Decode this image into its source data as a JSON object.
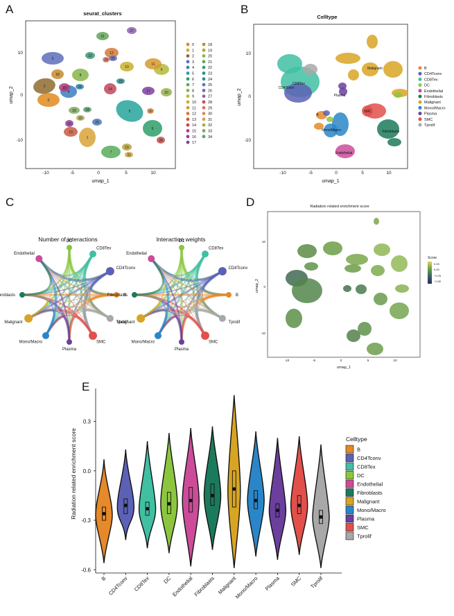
{
  "panels": {
    "A": "A",
    "B": "B",
    "C": "C",
    "D": "D",
    "E": "E"
  },
  "panel_a": {
    "title": "seurat_clusters",
    "xlabel": "umap_1",
    "ylabel": "umap_2",
    "x_ticks": [
      "-10",
      "-5",
      "0",
      "5",
      "10"
    ],
    "y_ticks": [
      "10",
      "0",
      "-10"
    ],
    "legend": [
      "0",
      "1",
      "2",
      "3",
      "4",
      "5",
      "6",
      "7",
      "8",
      "9",
      "10",
      "11",
      "12",
      "13",
      "14",
      "15",
      "16",
      "17",
      "18",
      "19",
      "20",
      "21",
      "22",
      "23",
      "24",
      "25",
      "26",
      "27",
      "28",
      "29",
      "30",
      "31",
      "32",
      "33",
      "34"
    ],
    "legend_colors": [
      "#e08a1e",
      "#d9a33a",
      "#8d6b2f",
      "#5f6fb8",
      "#3d7dbf",
      "#26a59a",
      "#2e9e6a",
      "#58ad5a",
      "#88b54a",
      "#b7b93a",
      "#c8b02e",
      "#d69a2b",
      "#d27a34",
      "#c85b3e",
      "#c0465a",
      "#b3387a",
      "#963c95",
      "#7d3f9e",
      "#c68b2e",
      "#b6a23b",
      "#94b04e",
      "#62a65b",
      "#3b9a73",
      "#2d8f8e",
      "#3585a6",
      "#4f78b3",
      "#6a6cb7",
      "#8f61b0",
      "#c05050",
      "#d9745a",
      "#d48f4f",
      "#cba44a",
      "#a9ab52",
      "#7fa85f",
      "#5ba06a"
    ]
  },
  "panel_b": {
    "title": "Celltype",
    "xlabel": "umap_1",
    "ylabel": "umap_2",
    "x_ticks": [
      "-10",
      "-5",
      "0",
      "5",
      "10"
    ],
    "y_ticks": [
      "10",
      "0",
      "-10"
    ],
    "legend": [
      "B",
      "CD4Tconv",
      "CD8Tex",
      "DC",
      "Endothelial",
      "Fibroblasts",
      "Malignant",
      "Mono/Macro",
      "Plasma",
      "SMC",
      "Tprolif"
    ],
    "colors": {
      "B": "#e5892a",
      "CD4Tconv": "#5b61b5",
      "CD8Tex": "#41bfa3",
      "DC": "#8cc63f",
      "Endothelial": "#cc4c9a",
      "Fibroblasts": "#1c7a5c",
      "Malignant": "#d8a423",
      "Mono/Macro": "#2a86c8",
      "Plasma": "#6b3f9e",
      "SMC": "#e2504b",
      "Tprolif": "#a8a8a8"
    },
    "labels_on_plot": [
      "Malignant",
      "CD4Tconv",
      "CD8Tex",
      "Plasma",
      "B",
      "SMC",
      "Mono/Macro",
      "Fibroblasts",
      "Endothelial"
    ]
  },
  "panel_c": {
    "titles": [
      "Number of interactions",
      "Interaction weights"
    ],
    "nodes": [
      "DC",
      "CD8Tex",
      "CD4Tconv",
      "B",
      "Tprolif",
      "SMC",
      "Plasma",
      "Mono/Macro",
      "Malignant",
      "Fibroblasts",
      "Endothelial"
    ]
  },
  "panel_d": {
    "title": "Radiation related enrichment score",
    "xlabel": "umap_1",
    "ylabel": "umap_2",
    "x_ticks": [
      "-10",
      "-5",
      "0",
      "5",
      "10"
    ],
    "y_ticks": [
      "10",
      "0",
      "-10"
    ],
    "legend_title": "Score",
    "legend_ticks": [
      "0.25",
      "0.00",
      "−0.25",
      "−0.50"
    ]
  },
  "chart_data": {
    "type": "violin",
    "xlabel": "",
    "ylabel": "Radiation related enrichment score",
    "ylim": [
      -0.62,
      0.5
    ],
    "y_ticks": [
      0.3,
      0.0,
      -0.3,
      -0.6
    ],
    "y_tick_labels": [
      "0.3",
      "0.0",
      "-0.3",
      "-0.6"
    ],
    "legend_title": "Celltype",
    "legend_position": "right",
    "categories": [
      "B",
      "CD4Tconv",
      "CD8Tex",
      "DC",
      "Endothelial",
      "Fibroblasts",
      "Malignant",
      "Mono/Macro",
      "Plasma",
      "SMC",
      "Tprolif"
    ],
    "series": [
      {
        "name": "B",
        "min": -0.56,
        "max": 0.07,
        "median": -0.27,
        "mean": -0.26,
        "q1": -0.3,
        "q3": -0.22,
        "color": "#e5892a"
      },
      {
        "name": "CD4Tconv",
        "min": -0.42,
        "max": 0.13,
        "median": -0.22,
        "mean": -0.21,
        "q1": -0.26,
        "q3": -0.17,
        "color": "#5b61b5"
      },
      {
        "name": "CD8Tex",
        "min": -0.47,
        "max": 0.18,
        "median": -0.23,
        "mean": -0.23,
        "q1": -0.27,
        "q3": -0.19,
        "color": "#41bfa3"
      },
      {
        "name": "DC",
        "min": -0.5,
        "max": 0.23,
        "median": -0.2,
        "mean": -0.2,
        "q1": -0.26,
        "q3": -0.13,
        "color": "#8cc63f"
      },
      {
        "name": "Endothelial",
        "min": -0.58,
        "max": 0.26,
        "median": -0.18,
        "mean": -0.18,
        "q1": -0.25,
        "q3": -0.1,
        "color": "#cc4c9a"
      },
      {
        "name": "Fibroblasts",
        "min": -0.48,
        "max": 0.27,
        "median": -0.15,
        "mean": -0.15,
        "q1": -0.21,
        "q3": -0.08,
        "color": "#1c7a5c"
      },
      {
        "name": "Malignant",
        "min": -0.59,
        "max": 0.46,
        "median": -0.12,
        "mean": -0.11,
        "q1": -0.22,
        "q3": 0.0,
        "color": "#d8a423"
      },
      {
        "name": "Mono/Macro",
        "min": -0.52,
        "max": 0.24,
        "median": -0.18,
        "mean": -0.18,
        "q1": -0.23,
        "q3": -0.12,
        "color": "#2a86c8"
      },
      {
        "name": "Plasma",
        "min": -0.54,
        "max": 0.2,
        "median": -0.24,
        "mean": -0.24,
        "q1": -0.28,
        "q3": -0.2,
        "color": "#6b3f9e"
      },
      {
        "name": "SMC",
        "min": -0.51,
        "max": 0.21,
        "median": -0.21,
        "mean": -0.21,
        "q1": -0.26,
        "q3": -0.15,
        "color": "#e2504b"
      },
      {
        "name": "Tprolif",
        "min": -0.59,
        "max": 0.16,
        "median": -0.28,
        "mean": -0.28,
        "q1": -0.32,
        "q3": -0.24,
        "color": "#a8a8a8"
      }
    ]
  }
}
